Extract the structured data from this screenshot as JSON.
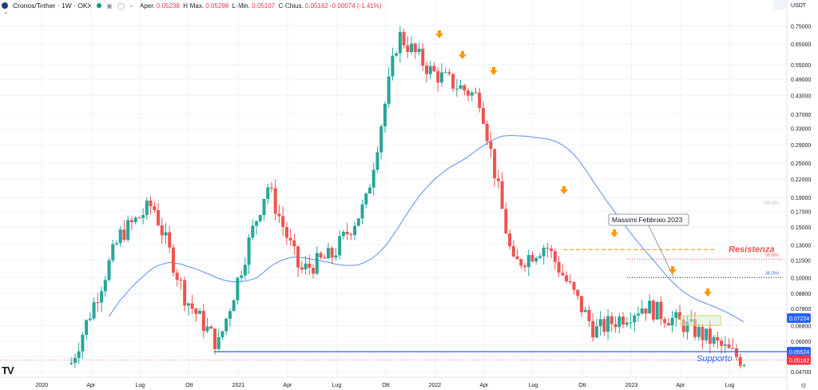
{
  "header": {
    "symbol": "Cronos/Tether · 1W · OKX",
    "icons_text": "▣ ◯ ⌁",
    "open_label": "Aper.",
    "open_value": "0.05238",
    "high_label": "H",
    "high_label_full": "Max.",
    "high_value": "0.05298",
    "low_label": "L",
    "low_label_full": "Min.",
    "low_value": "0.05107",
    "close_label": "C",
    "close_label_full": "Chius.",
    "close_value": "0.05162",
    "change_value": "-0.00074 (-1.41%)",
    "collapse_icon": "chevron-up-icon"
  },
  "colors": {
    "up": "#26a69a",
    "down": "#ef5350",
    "ma": "#5b8def",
    "support": "#2962ff",
    "resistance_dash": "#ffa726",
    "resistance_dot": "#ef5350",
    "fib": "#131722",
    "arrow": "#ff9800",
    "price_badge": "#f23645",
    "support_badge": "#2962ff",
    "ma_badge": "#2962ff"
  },
  "chart_data": {
    "type": "candlestick",
    "title": "",
    "currency_label": "USDT",
    "y_scale": "log",
    "ylim": [
      0.045,
      0.9
    ],
    "y_ticks": [
      "0.75000",
      "0.65000",
      "0.55000",
      "0.49000",
      "0.43000",
      "0.37000",
      "0.33000",
      "0.29000",
      "0.25000",
      "0.22000",
      "0.19000",
      "0.17000",
      "0.15000",
      "0.13000",
      "0.11500",
      "0.10000",
      "0.08800",
      "0.07800",
      "0.06800",
      "0.06000",
      "0.05300",
      "0.04700"
    ],
    "x_ticks": [
      "2020",
      "Apr",
      "Lug",
      "Ott",
      "2021",
      "Apr",
      "Lug",
      "Ott",
      "2022",
      "Apr",
      "Lug",
      "Ott",
      "2023",
      "Apr",
      "Lug"
    ],
    "series": [
      {
        "name": "Cronos/Tether",
        "kind": "candles",
        "key_closes": [
          {
            "date": "2020-03",
            "value": 0.05
          },
          {
            "date": "2020-06",
            "value": 0.14
          },
          {
            "date": "2020-08",
            "value": 0.18
          },
          {
            "date": "2020-10",
            "value": 0.085
          },
          {
            "date": "2020-12",
            "value": 0.058
          },
          {
            "date": "2021-02",
            "value": 0.14
          },
          {
            "date": "2021-03",
            "value": 0.21
          },
          {
            "date": "2021-05",
            "value": 0.105
          },
          {
            "date": "2021-07",
            "value": 0.12
          },
          {
            "date": "2021-09",
            "value": 0.18
          },
          {
            "date": "2021-11",
            "value": 0.7
          },
          {
            "date": "2022-01",
            "value": 0.52
          },
          {
            "date": "2022-04",
            "value": 0.42
          },
          {
            "date": "2022-06",
            "value": 0.11
          },
          {
            "date": "2022-08",
            "value": 0.13
          },
          {
            "date": "2022-11",
            "value": 0.065
          },
          {
            "date": "2023-02",
            "value": 0.08
          },
          {
            "date": "2023-05",
            "value": 0.066
          },
          {
            "date": "2023-08",
            "value": 0.05162
          }
        ]
      },
      {
        "name": "MA",
        "kind": "line",
        "last_value": "0.07224"
      }
    ],
    "price_badges": [
      {
        "label": "0.07224",
        "color_key": "ma_badge"
      },
      {
        "label": "0.05524",
        "color_key": "support_badge"
      },
      {
        "label": "0.05162",
        "color_key": "price_badge"
      }
    ],
    "annotations": {
      "callout": "Massimi Febbraio 2023",
      "resistance_label": "Resistenza",
      "support_label": "Supporto",
      "fib_50": "50.00%",
      "fib_382": "38.20%",
      "fib_100": "100.00%",
      "support_level": 0.05524,
      "resistance_level": 0.125,
      "fib_50_level": 0.116,
      "fib_382_level": 0.1
    }
  },
  "tv_logo": "TV",
  "settings_icon": "gear-icon"
}
